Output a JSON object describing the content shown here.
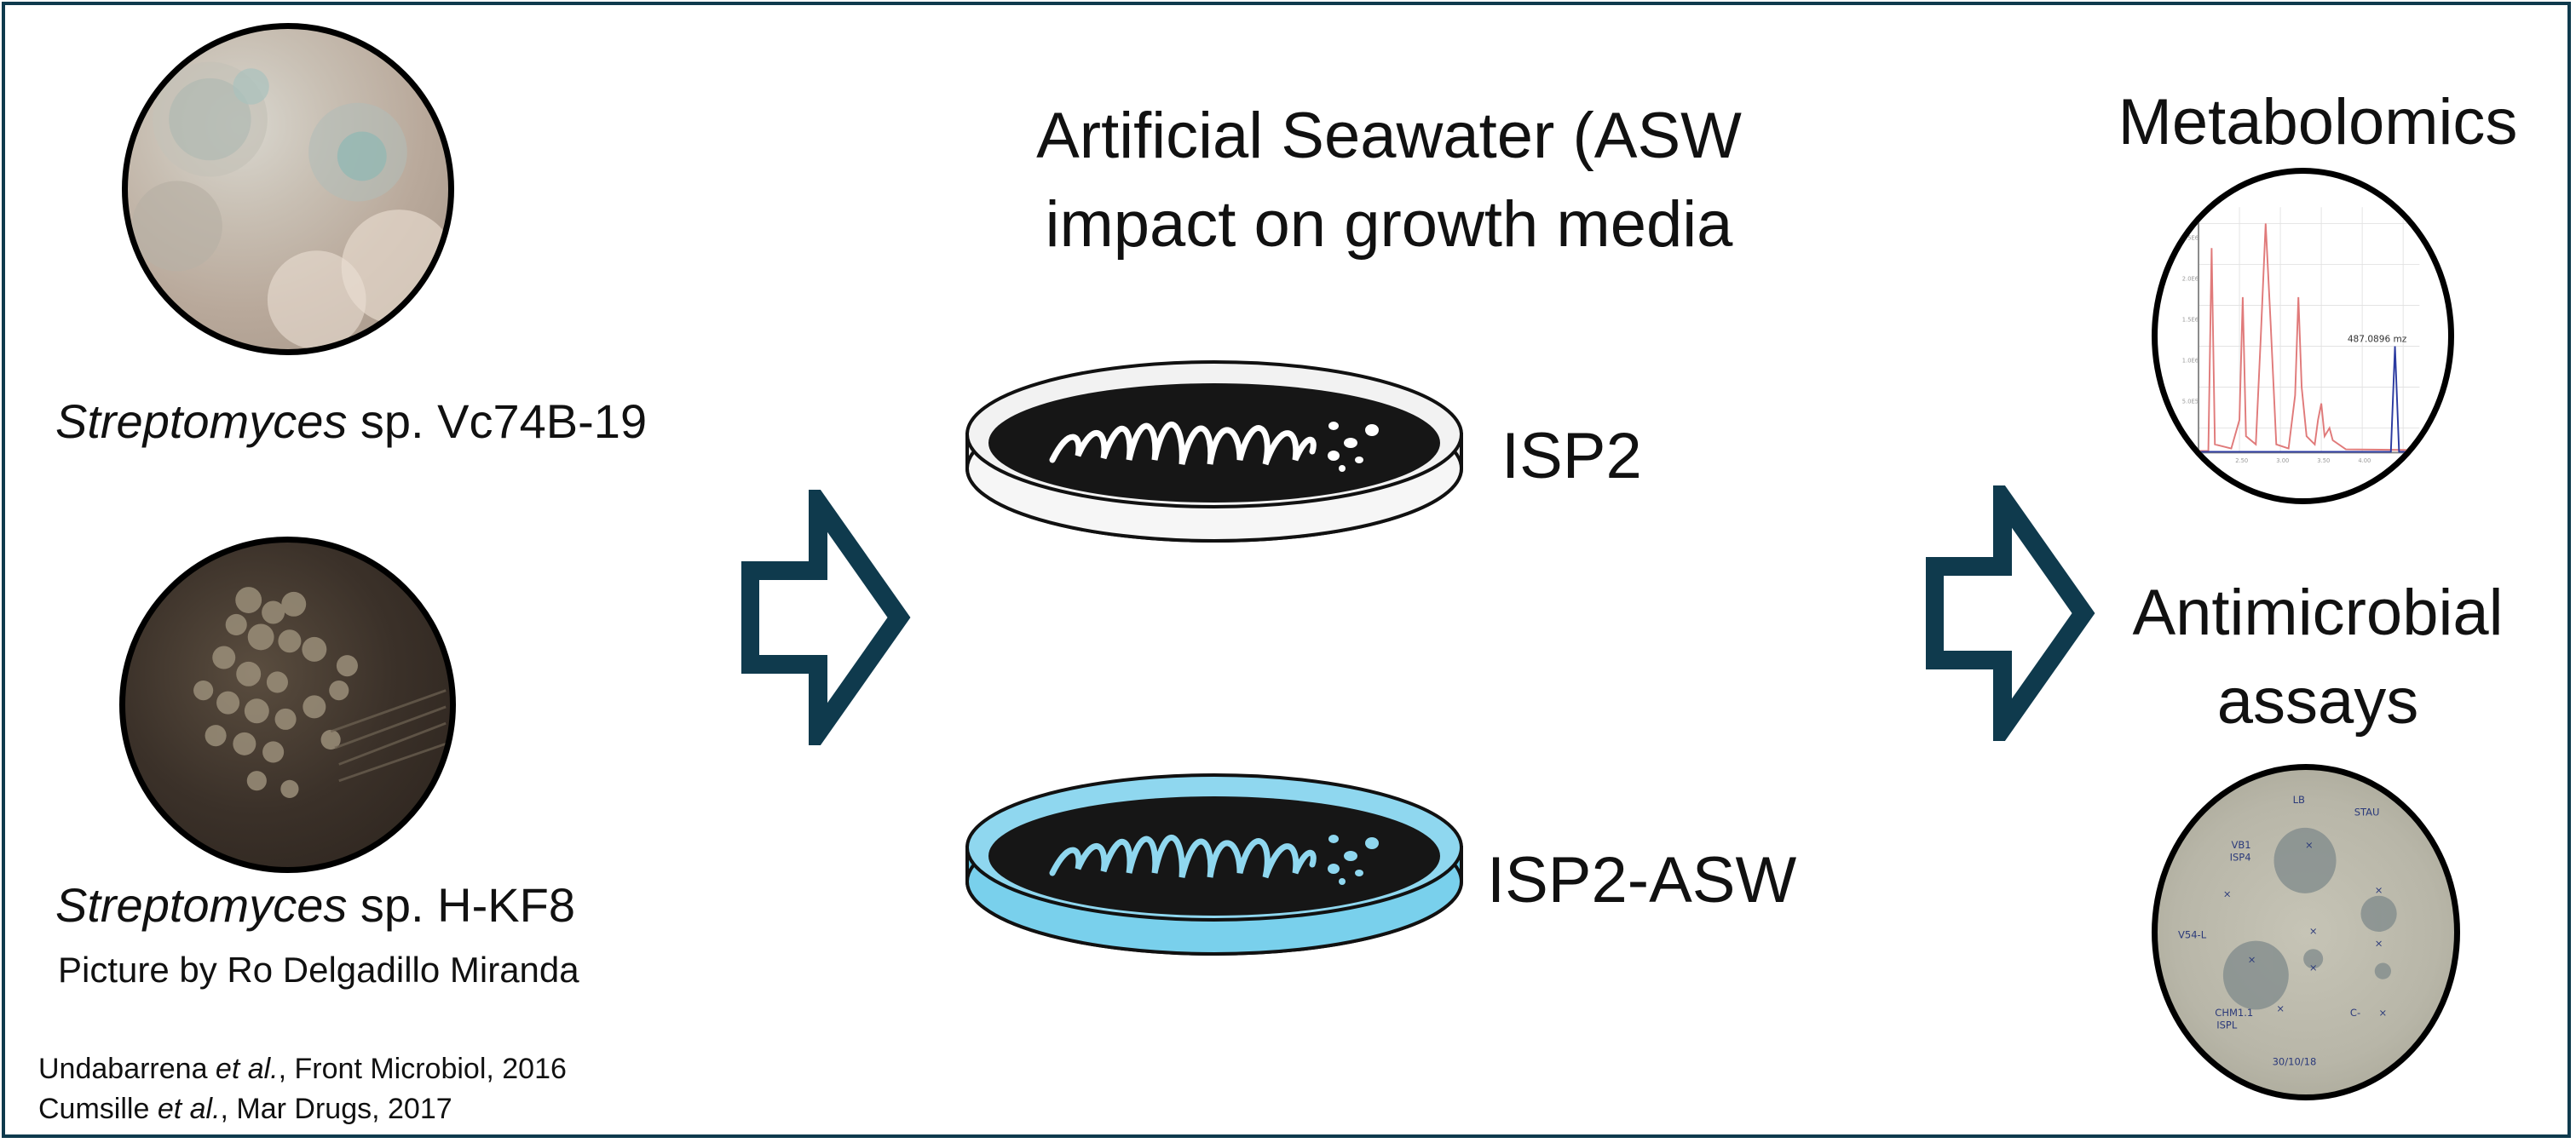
{
  "colors": {
    "border": "#0f3a4d",
    "arrow": "#0f3a4d",
    "dish_isp2": "#f2f2f2",
    "dish_asw": "#8fd7ef",
    "spectrum_red": "#e07a7a",
    "spectrum_blue": "#2b3aa0"
  },
  "left": {
    "organism1": {
      "genus": "Streptomyces",
      "strain": " sp. Vc74B-19"
    },
    "organism2": {
      "genus": "Streptomyces",
      "strain": " sp. H-KF8"
    },
    "photo_credit": "Picture by Ro Delgadillo Miranda",
    "references": [
      {
        "author": "Undabarrena ",
        "etal": "et al.",
        "rest": ", Front Microbiol, 2016"
      },
      {
        "author": "Cumsille ",
        "etal": "et al.",
        "rest": ", Mar Drugs, 2017"
      }
    ]
  },
  "center": {
    "title_line1": "Artificial Seawater (ASW",
    "title_line2": "impact on growth media",
    "media": [
      {
        "label": "ISP2"
      },
      {
        "label": "ISP2-ASW"
      }
    ]
  },
  "right": {
    "metabolomics": "Metabolomics",
    "antimicrobial_line1": "Antimicrobial",
    "antimicrobial_line2": "assays",
    "spectrum_peak_label": "487.0896 mz",
    "plate_labels": {
      "top_left": "LB",
      "top_right": "STAU",
      "vb": "VB\nISP",
      "v54": "V54-L",
      "chm": "CHM1.1\nISPL",
      "cneg": "C-",
      "date": "30/10/18"
    }
  },
  "icons": [
    "right-arrow-icon",
    "right-arrow-icon"
  ]
}
